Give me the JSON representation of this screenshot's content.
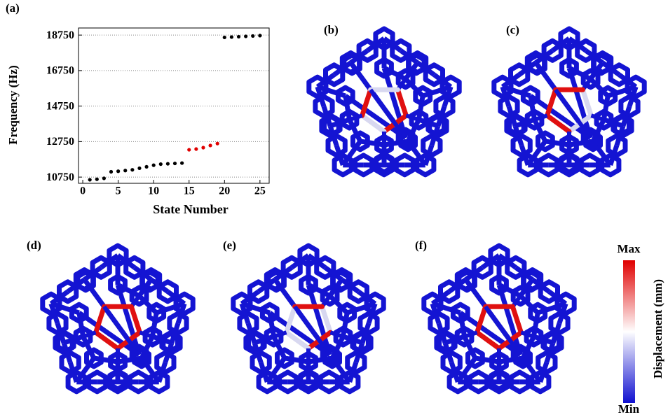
{
  "chart_data": {
    "type": "scatter",
    "panel_label": "(a)",
    "x_label": "State Number",
    "y_label": "Frequency (Hz)",
    "x": [
      1,
      2,
      3,
      4,
      5,
      6,
      7,
      8,
      9,
      10,
      11,
      12,
      13,
      14,
      15,
      16,
      17,
      18,
      19,
      20,
      21,
      22,
      23,
      24,
      25
    ],
    "values": [
      10600,
      10630,
      10680,
      11050,
      11080,
      11120,
      11160,
      11250,
      11330,
      11420,
      11480,
      11500,
      11520,
      11540,
      12290,
      12330,
      12410,
      12530,
      12640,
      18620,
      18640,
      18660,
      18680,
      18700,
      18720
    ],
    "colors": [
      "#000000",
      "#000000",
      "#000000",
      "#000000",
      "#000000",
      "#000000",
      "#000000",
      "#000000",
      "#000000",
      "#000000",
      "#000000",
      "#000000",
      "#000000",
      "#000000",
      "#e00000",
      "#e00000",
      "#e00000",
      "#e00000",
      "#e00000",
      "#000000",
      "#000000",
      "#000000",
      "#000000",
      "#000000",
      "#000000"
    ],
    "xlim": [
      -0.6,
      26.3
    ],
    "ylim": [
      10400,
      19150
    ],
    "xticks": [
      0,
      5,
      10,
      15,
      20,
      25
    ],
    "yticks": [
      10750,
      12750,
      14750,
      16750,
      18750
    ],
    "grid": true
  },
  "panels": [
    "(b)",
    "(c)",
    "(d)",
    "(e)",
    "(f)"
  ],
  "colorbar": {
    "max_label": "Max",
    "min_label": "Min",
    "title": "Displacement (mm)"
  }
}
